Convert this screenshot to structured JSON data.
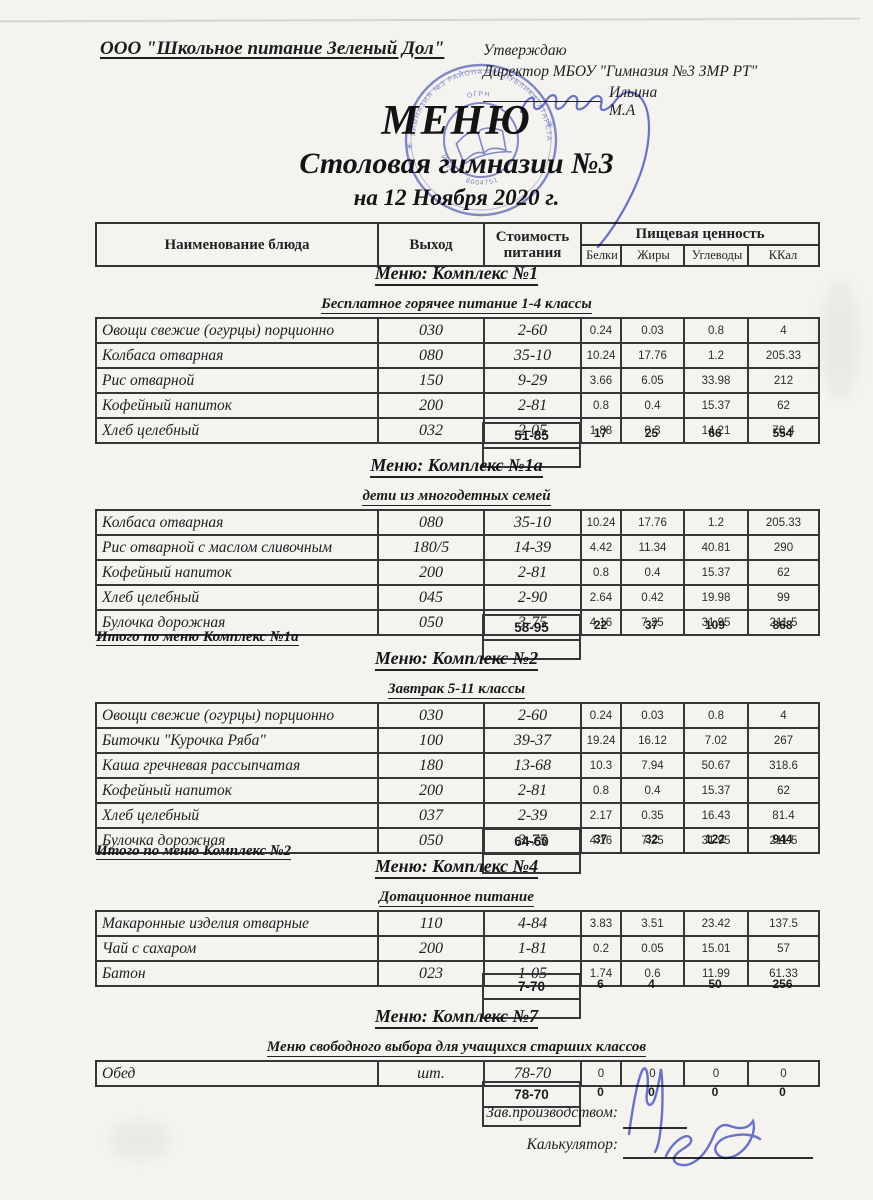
{
  "colors": {
    "paper": "#f4f3f0",
    "ink": "#232323",
    "stamp_blue": "#5763c0",
    "signature_blue": "#4a57c4"
  },
  "header": {
    "company": "ООО \"Школьное питание Зеленый Дол\"",
    "approve_line1": "Утверждаю",
    "approve_line2": "Директор МБОУ \"Гимназия №3 ЗМР РТ\"",
    "approver": "Ильина М.А",
    "title": "МЕНЮ",
    "subtitle": "Столовая гимназии №3",
    "date_line": "на 12 Ноября 2020 г."
  },
  "columns": {
    "dish": "Наименование блюда",
    "output": "Выход",
    "cost": "Стоимость питания",
    "nutrition": "Пищевая ценность",
    "protein": "Белки",
    "fat": "Жиры",
    "carbs": "Углеводы",
    "kcal": "ККал"
  },
  "sections": [
    {
      "title": "Меню: Комплекс №1",
      "subtitle": "Бесплатное горячее питание  1-4 классы",
      "rows": [
        [
          "Овощи свежие (огурцы) порционно",
          "030",
          "2-60",
          "0.24",
          "0.03",
          "0.8",
          "4"
        ],
        [
          "Колбаса отварная",
          "080",
          "35-10",
          "10.24",
          "17.76",
          "1.2",
          "205.33"
        ],
        [
          "Рис отварной",
          "150",
          "9-29",
          "3.66",
          "6.05",
          "33.98",
          "212"
        ],
        [
          "Кофейный напиток",
          "200",
          "2-81",
          "0.8",
          "0.4",
          "15.37",
          "62"
        ],
        [
          "Хлеб  целебный",
          "032",
          "2-05",
          "1.88",
          "0.3",
          "14.21",
          "70.4"
        ]
      ],
      "itogo": "",
      "total": {
        "cost": "51-85",
        "protein": "17",
        "fat": "25",
        "carbs": "66",
        "kcal": "554"
      }
    },
    {
      "title": "Меню: Комплекс №1а",
      "subtitle": "дети из многодетных семей",
      "rows": [
        [
          "Колбаса отварная",
          "080",
          "35-10",
          "10.24",
          "17.76",
          "1.2",
          "205.33"
        ],
        [
          "Рис отварной с маслом сливочным",
          "180/5",
          "14-39",
          "4.42",
          "11.34",
          "40.81",
          "290"
        ],
        [
          "Кофейный напиток",
          "200",
          "2-81",
          "0.8",
          "0.4",
          "15.37",
          "62"
        ],
        [
          "Хлеб  целебный",
          "045",
          "2-90",
          "2.64",
          "0.42",
          "19.98",
          "99"
        ],
        [
          "Булочка дорожная",
          "050",
          "3-75",
          "4.16",
          "7.25",
          "31.95",
          "211.5"
        ]
      ],
      "itogo": "Итого по меню Комплекс №1а",
      "total": {
        "cost": "58-95",
        "protein": "22",
        "fat": "37",
        "carbs": "109",
        "kcal": "868"
      }
    },
    {
      "title": "Меню: Комплекс №2",
      "subtitle": "Завтрак 5-11 классы",
      "rows": [
        [
          "Овощи свежие (огурцы) порционно",
          "030",
          "2-60",
          "0.24",
          "0.03",
          "0.8",
          "4"
        ],
        [
          "Биточки \"Курочка Ряба\"",
          "100",
          "39-37",
          "19.24",
          "16.12",
          "7.02",
          "267"
        ],
        [
          "Каша гречневая рассыпчатая",
          "180",
          "13-68",
          "10.3",
          "7.94",
          "50.67",
          "318.6"
        ],
        [
          "Кофейный напиток",
          "200",
          "2-81",
          "0.8",
          "0.4",
          "15.37",
          "62"
        ],
        [
          "Хлеб  целебный",
          "037",
          "2-39",
          "2.17",
          "0.35",
          "16.43",
          "81.4"
        ],
        [
          "Булочка дорожная",
          "050",
          "3-75",
          "4.16",
          "7.25",
          "31.95",
          "211.5"
        ]
      ],
      "itogo": "Итого по меню Комплекс №2",
      "total": {
        "cost": "64-60",
        "protein": "37",
        "fat": "32",
        "carbs": "122",
        "kcal": "944"
      }
    },
    {
      "title": "Меню: Комплекс №4",
      "subtitle": "Дотационное питание",
      "rows": [
        [
          "Макаронные изделия отварные",
          "110",
          "4-84",
          "3.83",
          "3.51",
          "23.42",
          "137.5"
        ],
        [
          "Чай с сахаром",
          "200",
          "1-81",
          "0.2",
          "0.05",
          "15.01",
          "57"
        ],
        [
          "Батон",
          "023",
          "1-05",
          "1.74",
          "0.6",
          "11.99",
          "61.33"
        ]
      ],
      "itogo": "",
      "total": {
        "cost": "7-70",
        "protein": "6",
        "fat": "4",
        "carbs": "50",
        "kcal": "256"
      }
    },
    {
      "title": "Меню: Комплекс №7",
      "subtitle": "Меню свободного выбора для учащихся старших классов",
      "rows": [
        [
          "Обед",
          "шт.",
          "78-70",
          "0",
          "0",
          "0",
          "0"
        ]
      ],
      "itogo": "",
      "total": {
        "cost": "78-70",
        "protein": "0",
        "fat": "0",
        "carbs": "0",
        "kcal": "0"
      }
    }
  ],
  "footer": {
    "manager_label": "Зав.производством:",
    "calculator_label": "Калькулятор:"
  },
  "stamp": {
    "fragments": [
      "ГИМНАЗИЯ №3",
      "РАЙОНА РЕСПУБЛИКИ",
      "ТАТАРСТАН",
      "ОГРН",
      "ИНН",
      "8004751"
    ]
  }
}
